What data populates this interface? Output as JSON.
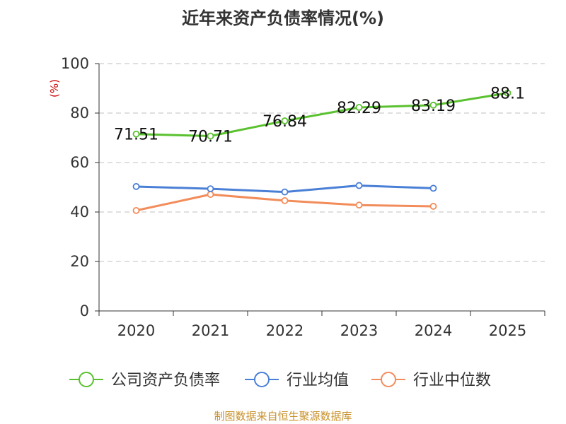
{
  "chart_data": {
    "type": "line",
    "title": "近年来资产负债率情况(%)",
    "unit": "(%)",
    "categories": [
      "2020",
      "2021",
      "2022",
      "2023",
      "2024",
      "2025"
    ],
    "ylim": [
      0,
      100
    ],
    "yticks": [
      "0",
      "20",
      "40",
      "60",
      "80",
      "100"
    ],
    "grid": true,
    "legend_position": "bottom",
    "series": [
      {
        "name": "公司资产负债率",
        "color": "#5ac12f",
        "values": [
          71.51,
          70.71,
          76.84,
          82.29,
          83.19,
          88.1
        ],
        "labels": [
          "71.51",
          "70.71",
          "76.84",
          "82.29",
          "83.19",
          "88.1"
        ]
      },
      {
        "name": "行业均值",
        "color": "#4a7fd6",
        "values": [
          50.3,
          49.4,
          48.1,
          50.7,
          49.6,
          null
        ]
      },
      {
        "name": "行业中位数",
        "color": "#f28c5a",
        "values": [
          40.6,
          47.1,
          44.6,
          42.8,
          42.3,
          null
        ]
      }
    ],
    "source": "制图数据来自恒生聚源数据库"
  }
}
